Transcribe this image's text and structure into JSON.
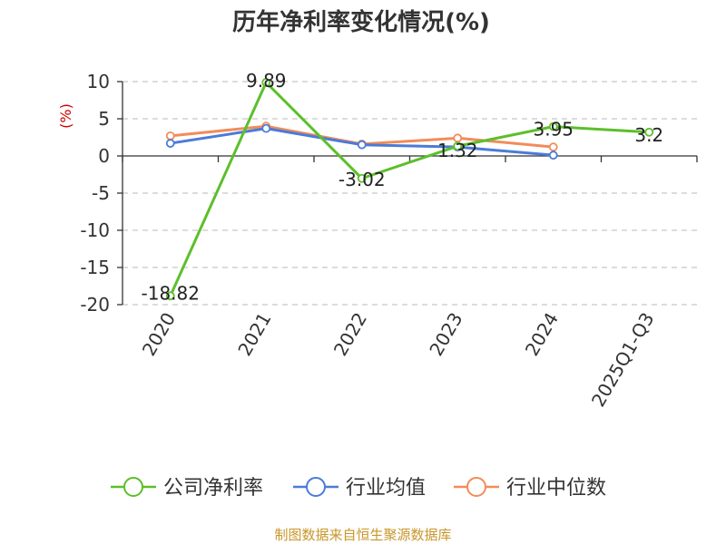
{
  "chart_data": {
    "type": "line",
    "title": "历年净利率变化情况(%)",
    "ylabel": "(%)",
    "categories": [
      "2020",
      "2021",
      "2022",
      "2023",
      "2024",
      "2025Q1-Q3"
    ],
    "ylim": [
      -20,
      10
    ],
    "yticks": [
      10,
      5,
      0,
      -5,
      -10,
      -15,
      -20
    ],
    "grid": true,
    "legend_position": "bottom",
    "series": [
      {
        "name": "公司净利率",
        "color": "#5cbf2a",
        "values": [
          -18.82,
          9.89,
          -3.02,
          1.32,
          3.95,
          3.2
        ],
        "labels": [
          "-18.82",
          "9.89",
          "-3.02",
          "1.32",
          "3.95",
          "3.2"
        ]
      },
      {
        "name": "行业均值",
        "color": "#4a7bd8",
        "values": [
          1.7,
          3.7,
          1.5,
          1.2,
          0.1,
          null
        ]
      },
      {
        "name": "行业中位数",
        "color": "#f28c5a",
        "values": [
          2.7,
          4.0,
          1.6,
          2.4,
          1.2,
          null
        ]
      }
    ]
  },
  "source": {
    "text": "制图数据来自恒生聚源数据库",
    "color": "#c8962a"
  },
  "axis_label_color": "#cc0000"
}
